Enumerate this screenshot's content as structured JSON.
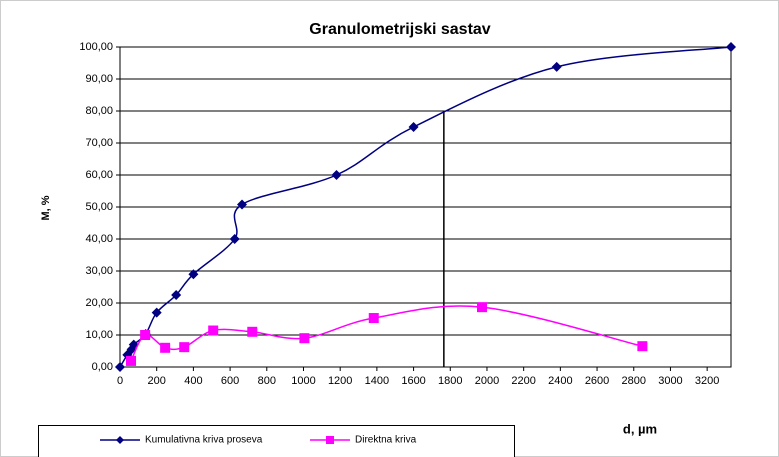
{
  "chart_data": {
    "type": "line",
    "title": "Granulometrijski sastav",
    "x_label": "d, µm",
    "y_label": "M, %",
    "xlim": [
      0,
      3330
    ],
    "ylim": [
      0,
      100
    ],
    "xticks": [
      0,
      200,
      400,
      600,
      800,
      1000,
      1200,
      1400,
      1600,
      1800,
      2000,
      2200,
      2400,
      2600,
      2800,
      3000,
      3200
    ],
    "yticks": [
      {
        "value": 0,
        "label": "0,00"
      },
      {
        "value": 10,
        "label": "10,00"
      },
      {
        "value": 20,
        "label": "20,00"
      },
      {
        "value": 30,
        "label": "30,00"
      },
      {
        "value": 40,
        "label": "40,00"
      },
      {
        "value": 50,
        "label": "50,00"
      },
      {
        "value": 60,
        "label": "60,00"
      },
      {
        "value": 70,
        "label": "70,00"
      },
      {
        "value": 80,
        "label": "80,00"
      },
      {
        "value": 90,
        "label": "90,00"
      },
      {
        "value": 100,
        "label": "100,00"
      }
    ],
    "grid": true,
    "legend": "bottom",
    "series": [
      {
        "name": "Kumulativna kriva proseva",
        "color": "#000080",
        "marker": "diamond",
        "x": [
          0,
          40,
          63,
          75,
          140,
          200,
          306,
          400,
          625,
          665,
          1180,
          1600,
          2380,
          3330
        ],
        "values": [
          0,
          3.8,
          5.5,
          7,
          10.3,
          17,
          22.5,
          29,
          40,
          50.8,
          60,
          75,
          93.8,
          100
        ]
      },
      {
        "name": "Direktna kriva",
        "color": "#ff00ff",
        "marker": "square",
        "x": [
          60,
          137,
          246,
          350,
          508,
          721,
          1005,
          1383,
          1973,
          2847
        ],
        "values": [
          1.9,
          10,
          6,
          6.2,
          11.4,
          11,
          9,
          15.3,
          18.7,
          6.5
        ]
      }
    ],
    "reference_line": {
      "x": 1765,
      "y": 80
    }
  }
}
